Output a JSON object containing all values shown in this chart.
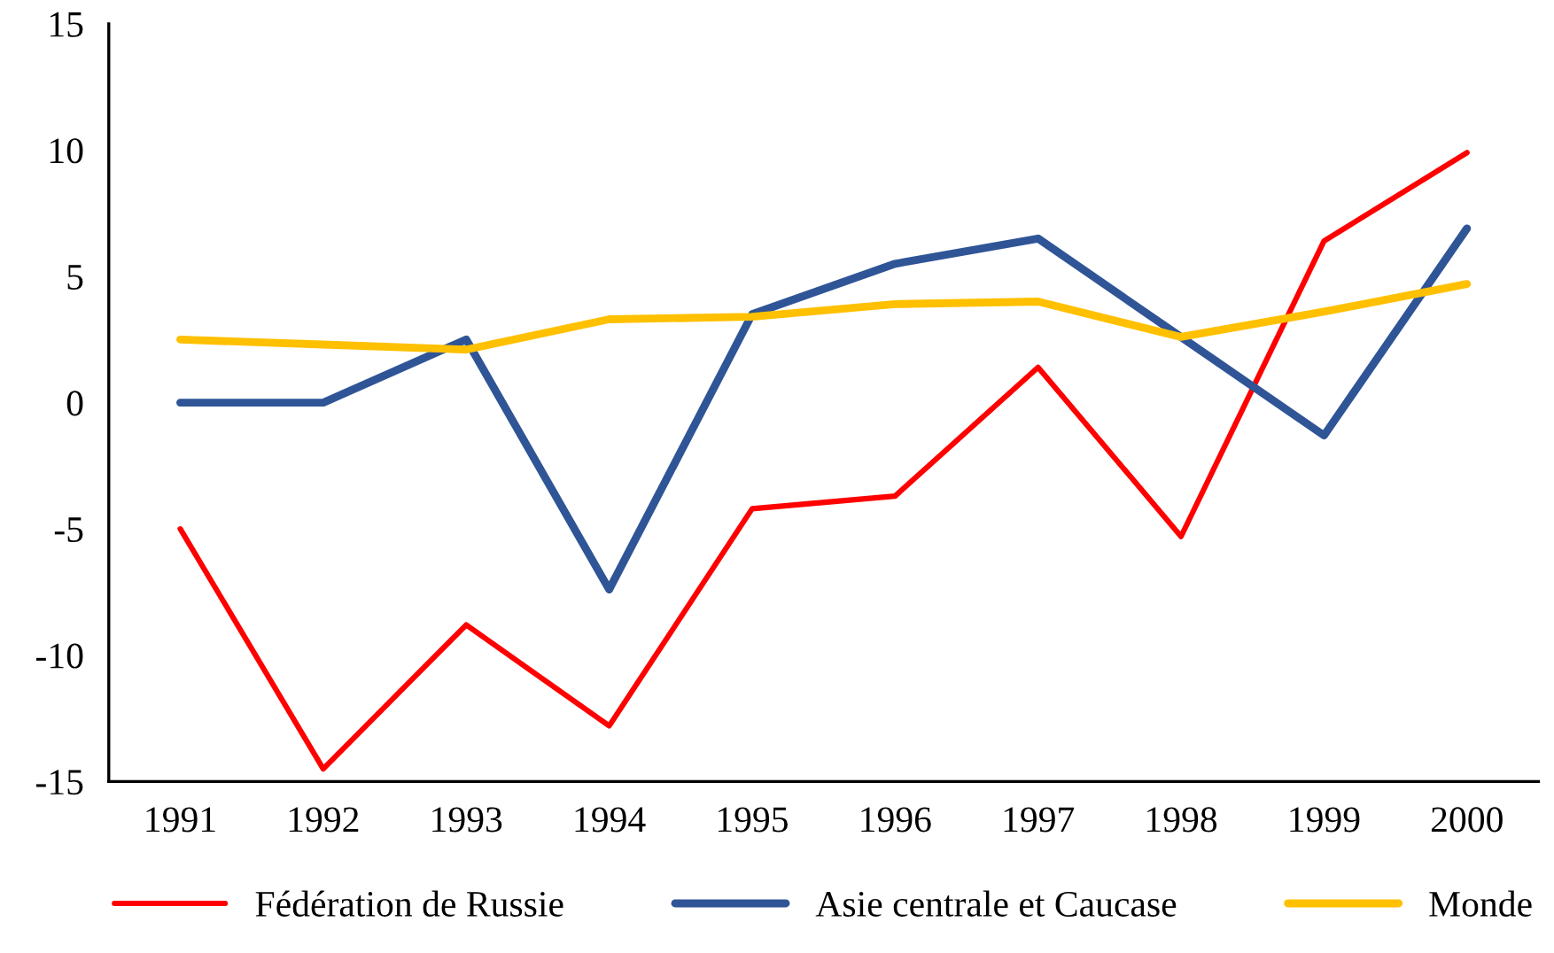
{
  "chart_data": {
    "type": "line",
    "categories": [
      "1991",
      "1992",
      "1993",
      "1994",
      "1995",
      "1996",
      "1997",
      "1998",
      "1999",
      "2000"
    ],
    "series": [
      {
        "name": "Fédération de Russie",
        "color": "#ff0000",
        "values": [
          -5.0,
          -14.5,
          -8.8,
          -12.8,
          -4.2,
          -3.7,
          1.4,
          -5.3,
          6.4,
          9.9
        ]
      },
      {
        "name": "Asie centrale et Caucase",
        "color": "#2f5597",
        "values": [
          0,
          0,
          2.5,
          -7.4,
          3.5,
          5.5,
          6.5,
          2.6,
          -1.3,
          6.9
        ]
      },
      {
        "name": "Monde",
        "color": "#ffc000",
        "values": [
          2.5,
          2.3,
          2.1,
          3.3,
          3.4,
          3.9,
          4.0,
          2.6,
          3.6,
          4.7
        ]
      }
    ],
    "ylim": [
      -15,
      15
    ],
    "yticks": [
      -15,
      -10,
      -5,
      0,
      5,
      10,
      15
    ],
    "grid": false,
    "legend": "bottom",
    "marker": "none",
    "line_style": "solid"
  }
}
